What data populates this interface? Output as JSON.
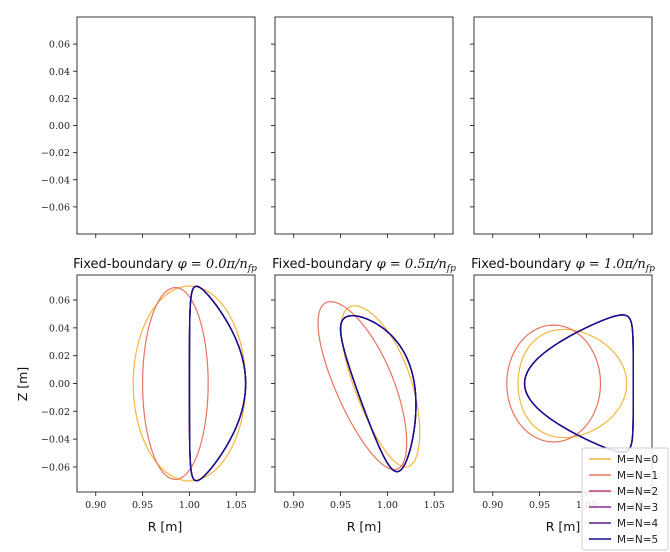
{
  "chart_data": {
    "type": "line",
    "top_row": {
      "yticks": [
        "0.06",
        "0.04",
        "0.02",
        "0.00",
        "−0.02",
        "−0.04",
        "−0.06"
      ],
      "ytick_values": [
        0.06,
        0.04,
        0.02,
        0.0,
        -0.02,
        -0.04,
        -0.06
      ],
      "ylim": [
        -0.08,
        0.08
      ]
    },
    "bottom_row": {
      "xlim": [
        0.88,
        1.07
      ],
      "ylim": [
        -0.078,
        0.078
      ],
      "xticks": [
        "0.90",
        "0.95",
        "1.00",
        "1.05"
      ],
      "xtick_values": [
        0.9,
        0.95,
        1.0,
        1.05
      ],
      "yticks": [
        "0.06",
        "0.04",
        "0.02",
        "0.00",
        "−0.02",
        "−0.04",
        "−0.06"
      ],
      "ytick_values": [
        0.06,
        0.04,
        0.02,
        0.0,
        -0.02,
        -0.04,
        -0.06
      ],
      "xlabel": "R [m]",
      "ylabel": "Z [m]"
    },
    "panels": [
      {
        "title_prefix": "Fixed-boundary ",
        "title_math": "φ = 0.0π/n",
        "title_sub": "fp",
        "series": [
          {
            "color": "#f5b63c",
            "R0": 1.0,
            "a": 0.06,
            "k": 1.167,
            "d": 0.0,
            "rot": 0.0,
            "sq": 0.0
          },
          {
            "color": "#e8745d",
            "R0": 0.985,
            "a": 0.035,
            "k": 1.97,
            "d": 0.0,
            "rot": 0.0,
            "sq": 0.0
          },
          {
            "color": "#c83d7a",
            "R0": 1.03,
            "a": 0.03,
            "k": 2.33,
            "d": 0.75,
            "rot": 0.0,
            "sq": 0.0
          },
          {
            "color": "#8a2891",
            "R0": 1.03,
            "a": 0.03,
            "k": 2.33,
            "d": 0.75,
            "rot": 0.0,
            "sq": 0.0
          },
          {
            "color": "#5a188f",
            "R0": 1.03,
            "a": 0.03,
            "k": 2.33,
            "d": 0.75,
            "rot": 0.0,
            "sq": 0.0
          },
          {
            "color": "#130f8f",
            "R0": 1.03,
            "a": 0.03,
            "k": 2.33,
            "d": 0.75,
            "rot": 0.0,
            "sq": 0.0
          }
        ]
      },
      {
        "title_prefix": "Fixed-boundary ",
        "title_math": "φ = 0.5π/n",
        "title_sub": "fp",
        "series": [
          {
            "color": "#f5b63c",
            "R0": 0.995,
            "a": 0.028,
            "k": 2.35,
            "d": 0.15,
            "rot": 0.55,
            "sq": 0.0
          },
          {
            "color": "#e8745d",
            "R0": 0.975,
            "a": 0.028,
            "k": 2.55,
            "d": 0.1,
            "rot": 0.62,
            "sq": 0.0
          },
          {
            "color": "#c83d7a",
            "R0": 0.998,
            "a": 0.029,
            "k": 2.15,
            "d": 0.55,
            "rot": 0.5,
            "sq": 0.0
          },
          {
            "color": "#8a2891",
            "R0": 0.998,
            "a": 0.029,
            "k": 2.15,
            "d": 0.55,
            "rot": 0.5,
            "sq": 0.0
          },
          {
            "color": "#5a188f",
            "R0": 0.998,
            "a": 0.029,
            "k": 2.15,
            "d": 0.55,
            "rot": 0.5,
            "sq": 0.0
          },
          {
            "color": "#130f8f",
            "R0": 0.998,
            "a": 0.029,
            "k": 2.15,
            "d": 0.55,
            "rot": 0.5,
            "sq": 0.0
          }
        ]
      },
      {
        "title_prefix": "Fixed-boundary ",
        "title_math": "φ = 1.0π/n",
        "title_sub": "fp",
        "series": [
          {
            "color": "#f5b63c",
            "R0": 0.985,
            "a": 0.058,
            "k": 0.67,
            "d": 0.15,
            "rot": 0.0,
            "sq": 0.0
          },
          {
            "color": "#e8745d",
            "R0": 0.965,
            "a": 0.05,
            "k": 0.84,
            "d": 0.0,
            "rot": 0.0,
            "sq": 0.0
          },
          {
            "color": "#c83d7a",
            "R0": 0.992,
            "a": 0.058,
            "k": 0.85,
            "d": -0.8,
            "rot": 0.0,
            "sq": 0.0
          },
          {
            "color": "#8a2891",
            "R0": 0.992,
            "a": 0.058,
            "k": 0.85,
            "d": -0.8,
            "rot": 0.0,
            "sq": 0.0
          },
          {
            "color": "#5a188f",
            "R0": 0.992,
            "a": 0.058,
            "k": 0.85,
            "d": -0.8,
            "rot": 0.0,
            "sq": 0.0
          },
          {
            "color": "#130f8f",
            "R0": 0.992,
            "a": 0.058,
            "k": 0.85,
            "d": -0.8,
            "rot": 0.0,
            "sq": 0.0
          }
        ]
      }
    ],
    "legend": {
      "placement": "bottom-right",
      "entries": [
        {
          "label": "M=N=0",
          "color": "#f5b63c"
        },
        {
          "label": "M=N=1",
          "color": "#e8745d"
        },
        {
          "label": "M=N=2",
          "color": "#c83d7a"
        },
        {
          "label": "M=N=3",
          "color": "#8a2891"
        },
        {
          "label": "M=N=4",
          "color": "#5a188f"
        },
        {
          "label": "M=N=5",
          "color": "#130f8f"
        }
      ]
    }
  }
}
